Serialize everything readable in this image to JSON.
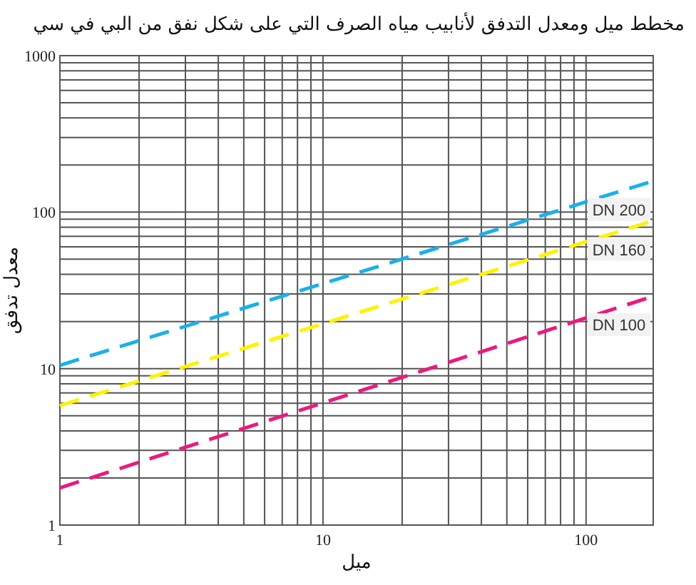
{
  "chart_data": {
    "type": "line",
    "title": "مخطط ميل ومعدل التدفق لأنابيب مياه الصرف التي على شكل نفق من البي في سي",
    "xlabel": "ميل",
    "ylabel": "معدل تدفق",
    "log": "xy",
    "grid": true,
    "line_style": "dashed",
    "marker": "none",
    "x": [
      1,
      180
    ],
    "xlim": [
      1,
      180
    ],
    "ylim": [
      1,
      1000
    ],
    "xticks": [
      1,
      {
        "value": 2,
        "label": null
      },
      {
        "value": 3,
        "label": null
      },
      {
        "value": 4,
        "label": null
      },
      {
        "value": 5,
        "label": null
      },
      {
        "value": 6,
        "label": null
      },
      {
        "value": 7,
        "label": null
      },
      {
        "value": 8,
        "label": null
      },
      {
        "value": 9,
        "label": null
      },
      10,
      {
        "value": 20,
        "label": null
      },
      {
        "value": 30,
        "label": null
      },
      {
        "value": 40,
        "label": null
      },
      {
        "value": 50,
        "label": null
      },
      {
        "value": 60,
        "label": null
      },
      {
        "value": 70,
        "label": null
      },
      {
        "value": 80,
        "label": null
      },
      {
        "value": 90,
        "label": null
      },
      100
    ],
    "yticks": [
      1,
      {
        "value": 2,
        "label": null
      },
      {
        "value": 3,
        "label": null
      },
      {
        "value": 4,
        "label": null
      },
      {
        "value": 5,
        "label": null
      },
      {
        "value": 6,
        "label": null
      },
      {
        "value": 7,
        "label": null
      },
      {
        "value": 8,
        "label": null
      },
      {
        "value": 9,
        "label": null
      },
      10,
      {
        "value": 20,
        "label": null
      },
      {
        "value": 30,
        "label": null
      },
      {
        "value": 40,
        "label": null
      },
      {
        "value": 50,
        "label": null
      },
      {
        "value": 60,
        "label": null
      },
      {
        "value": 70,
        "label": null
      },
      {
        "value": 80,
        "label": null
      },
      {
        "value": 90,
        "label": null
      },
      100,
      {
        "value": 200,
        "label": null
      },
      {
        "value": 300,
        "label": null
      },
      {
        "value": 400,
        "label": null
      },
      {
        "value": 500,
        "label": null
      },
      {
        "value": 600,
        "label": null
      },
      {
        "value": 700,
        "label": null
      },
      {
        "value": 800,
        "label": null
      },
      {
        "value": 900,
        "label": null
      },
      1000
    ],
    "series": [
      {
        "name": "DN 200",
        "color": "#1ab0ec",
        "values": [
          10.5,
          158
        ]
      },
      {
        "name": "DN 160",
        "color": "#fff200",
        "values": [
          5.8,
          88
        ]
      },
      {
        "name": "DN 100",
        "color": "#ec1a7d",
        "values": [
          1.73,
          29
        ]
      }
    ]
  }
}
